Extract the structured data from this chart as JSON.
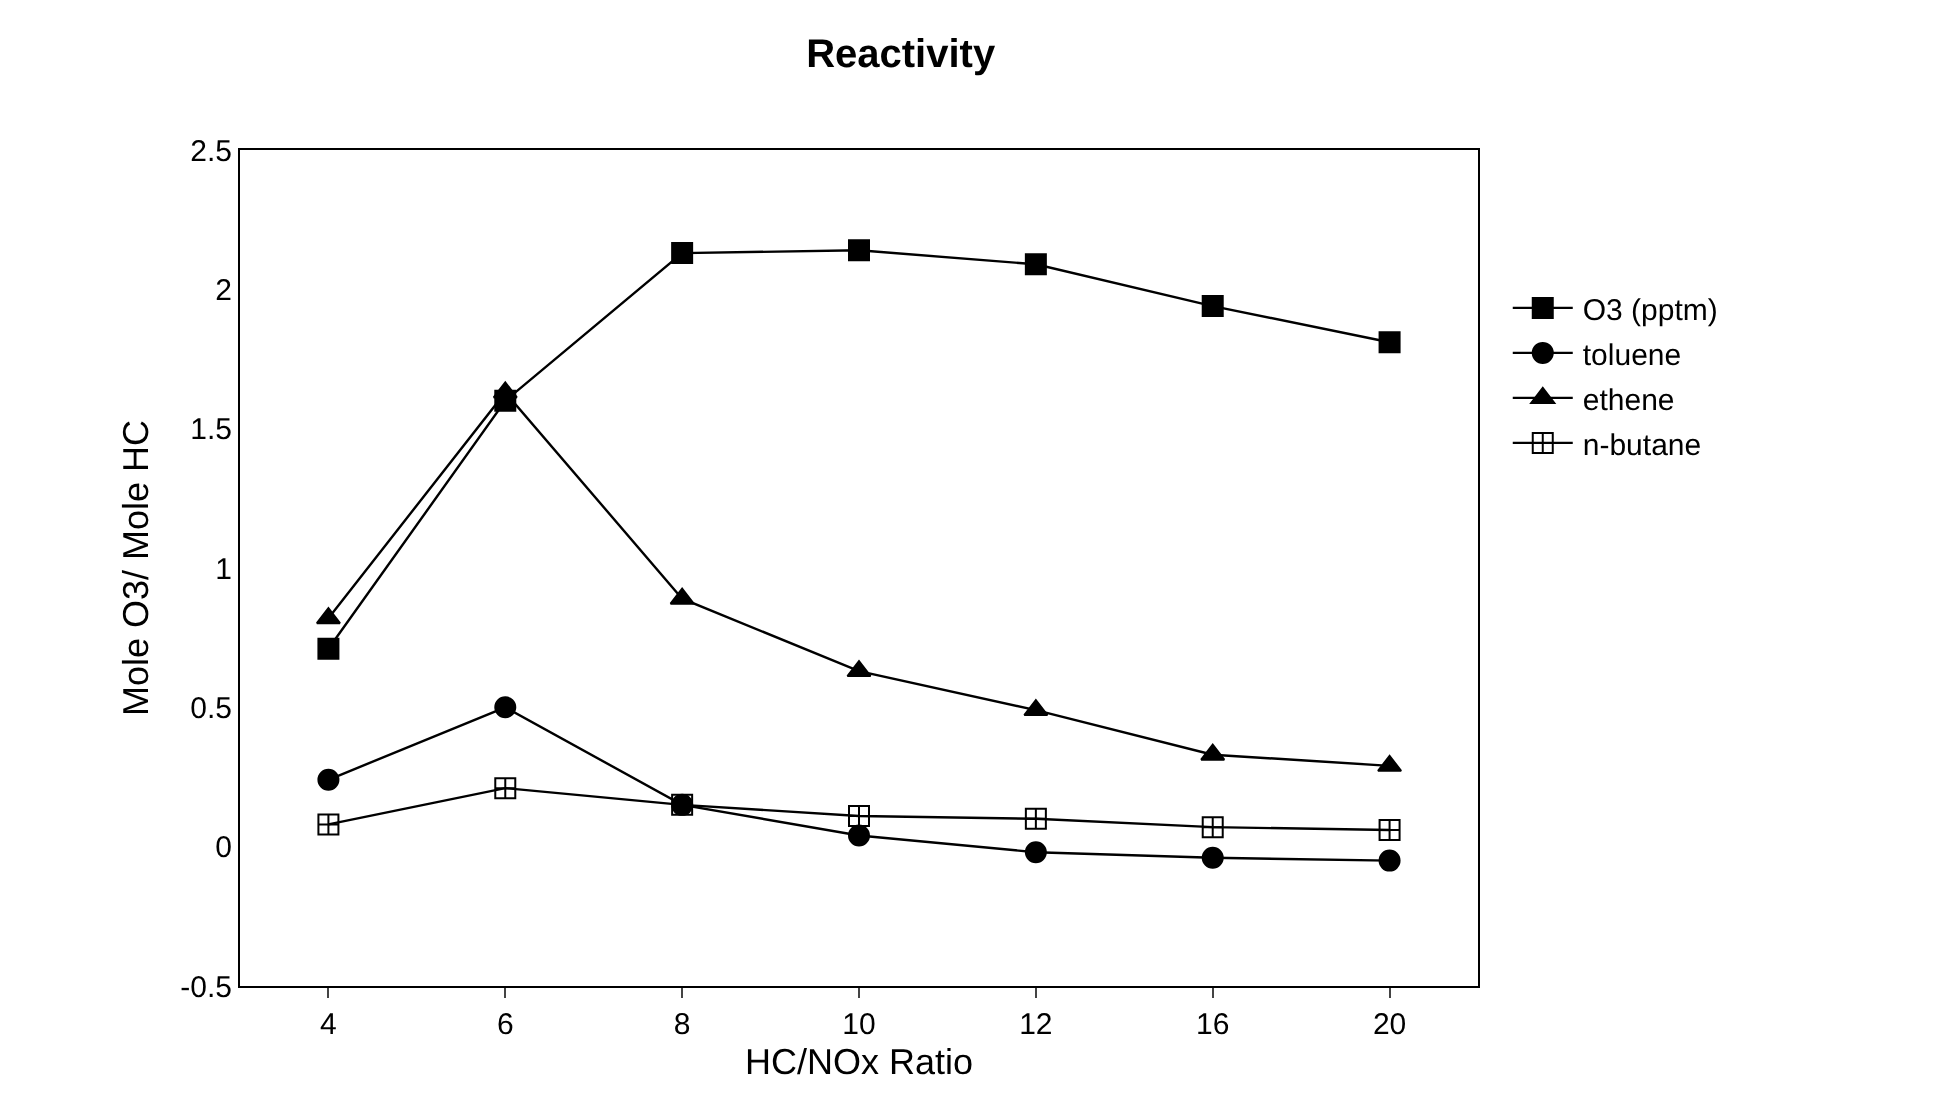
{
  "chart_data": {
    "type": "line",
    "title": "Reactivity",
    "xlabel": "HC/NOx Ratio",
    "ylabel": "Mole O3/ Mole HC",
    "categories": [
      "4",
      "6",
      "8",
      "10",
      "12",
      "16",
      "20"
    ],
    "series": [
      {
        "name": "O3 (pptm)",
        "color": "#000000",
        "marker": "square",
        "values": [
          0.71,
          1.6,
          2.13,
          2.14,
          2.09,
          1.94,
          1.81
        ]
      },
      {
        "name": "toluene",
        "color": "#000000",
        "marker": "circle",
        "values": [
          0.24,
          0.5,
          0.15,
          0.04,
          -0.02,
          -0.04,
          -0.05
        ]
      },
      {
        "name": "ethene",
        "color": "#000000",
        "marker": "triangle",
        "values": [
          0.82,
          1.63,
          0.89,
          0.63,
          0.49,
          0.33,
          0.29
        ]
      },
      {
        "name": "n-butane",
        "color": "#000000",
        "marker": "cross",
        "values": [
          0.08,
          0.21,
          0.15,
          0.11,
          0.1,
          0.07,
          0.06
        ]
      }
    ],
    "ylim": [
      -0.5,
      2.5
    ],
    "yticks": [
      -0.5,
      0,
      0.5,
      1,
      1.5,
      2,
      2.5
    ],
    "grid": false,
    "legend": "right",
    "line_style": "solid"
  }
}
